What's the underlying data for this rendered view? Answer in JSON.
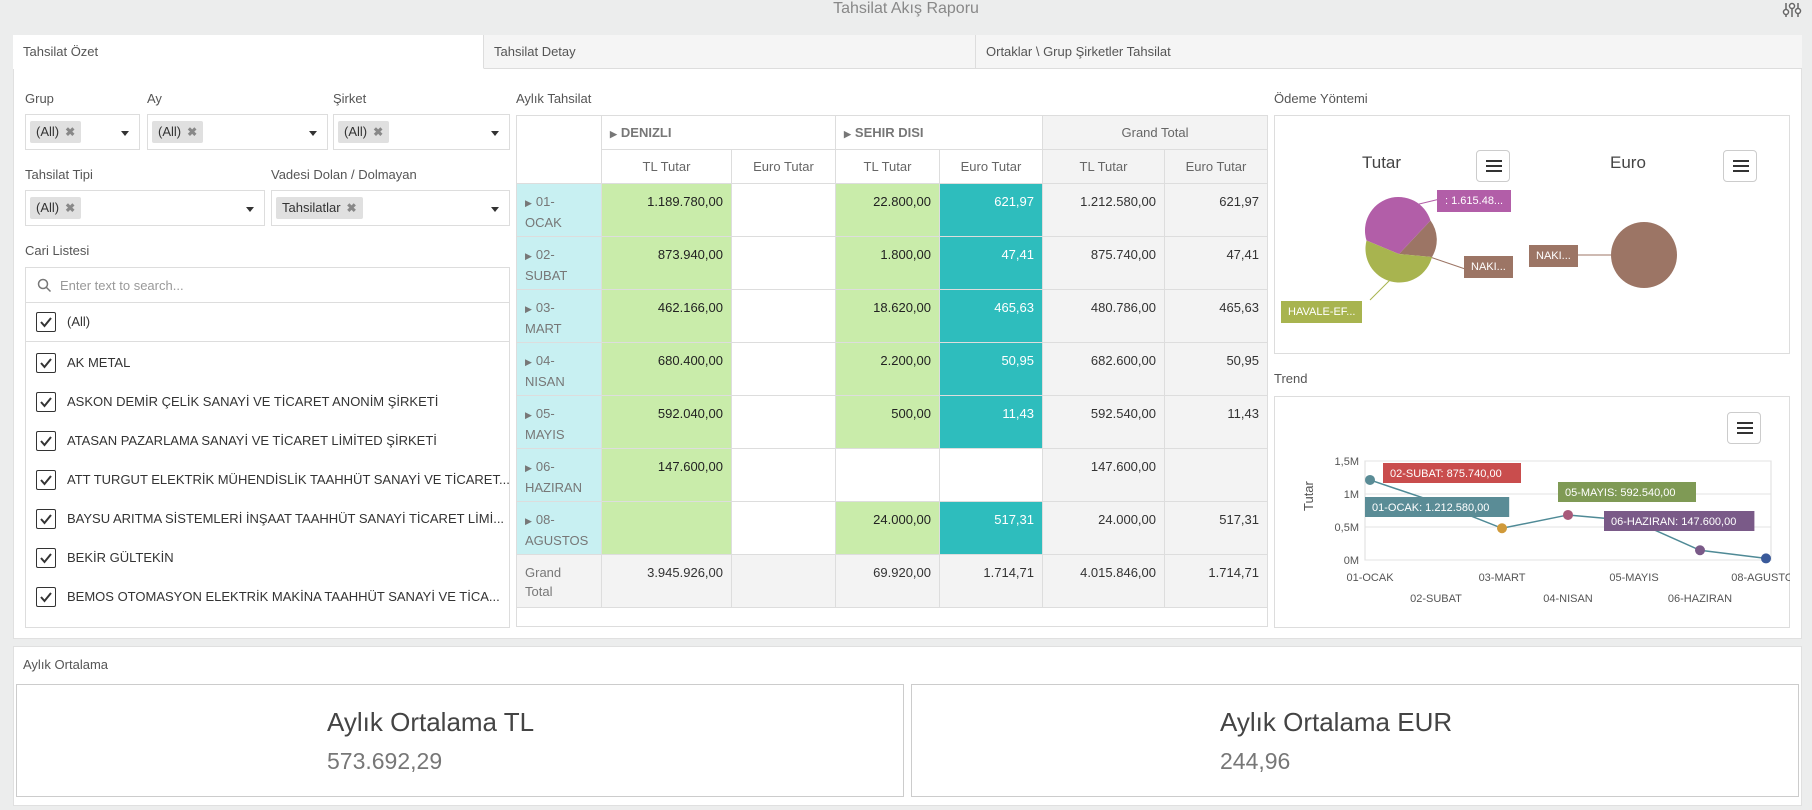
{
  "header": {
    "title": "Tahsilat Akış Raporu"
  },
  "tabs": [
    "Tahsilat Özet",
    "Tahsilat Detay",
    "Ortaklar \\ Grup Şirketler Tahsilat"
  ],
  "filters": {
    "grup": {
      "label": "Grup",
      "value": "(All)"
    },
    "ay": {
      "label": "Ay",
      "value": "(All)"
    },
    "sirket": {
      "label": "Şirket",
      "value": "(All)"
    },
    "tahsilat_tipi": {
      "label": "Tahsilat Tipi",
      "value": "(All)"
    },
    "vadesi": {
      "label": "Vadesi Dolan / Dolmayan",
      "value": "Tahsilatlar"
    }
  },
  "cari": {
    "label": "Cari Listesi",
    "search_placeholder": "Enter text to search...",
    "all_label": "(All)",
    "items": [
      "AK METAL",
      "ASKON DEMİR ÇELİK SANAYİ VE TİCARET ANONİM ŞİRKETİ",
      "ATASAN PAZARLAMA SANAYİ VE TİCARET LİMİTED ŞİRKETİ",
      "ATT TURGUT ELEKTRİK MÜHENDİSLİK TAAHHÜT SANAYİ VE TİCARET...",
      "BAYSU ARITMA SİSTEMLERİ İNŞAAT TAAHHÜT SANAYİ TİCARET LİMİ...",
      "BEKİR GÜLTEKİN",
      "BEMOS OTOMASYON ELEKTRİK MAKİNA TAAHHÜT SANAYİ VE TİCA..."
    ]
  },
  "pivot": {
    "title": "Aylık Tahsilat",
    "groups": [
      "DENIZLI",
      "SEHIR DISI",
      "Grand Total"
    ],
    "measures": [
      "TL Tutar",
      "Euro Tutar"
    ],
    "rows": [
      {
        "label": "01-\nOCAK",
        "cells": [
          "1.189.780,00",
          "",
          "22.800,00",
          "621,97",
          "1.212.580,00",
          "621,97"
        ]
      },
      {
        "label": "02-\nSUBAT",
        "cells": [
          "873.940,00",
          "",
          "1.800,00",
          "47,41",
          "875.740,00",
          "47,41"
        ]
      },
      {
        "label": "03-\nMART",
        "cells": [
          "462.166,00",
          "",
          "18.620,00",
          "465,63",
          "480.786,00",
          "465,63"
        ]
      },
      {
        "label": "04-\nNISAN",
        "cells": [
          "680.400,00",
          "",
          "2.200,00",
          "50,95",
          "682.600,00",
          "50,95"
        ]
      },
      {
        "label": "05-\nMAYIS",
        "cells": [
          "592.040,00",
          "",
          "500,00",
          "11,43",
          "592.540,00",
          "11,43"
        ]
      },
      {
        "label": "06-\nHAZIRAN",
        "cells": [
          "147.600,00",
          "",
          "",
          "",
          "147.600,00",
          ""
        ]
      },
      {
        "label": "08-\nAGUSTOS",
        "cells": [
          "",
          "",
          "24.000,00",
          "517,31",
          "24.000,00",
          "517,31"
        ]
      }
    ],
    "grand": {
      "label": "Grand\nTotal",
      "cells": [
        "3.945.926,00",
        "",
        "69.920,00",
        "1.714,71",
        "4.015.846,00",
        "1.714,71"
      ]
    }
  },
  "odeme": {
    "title": "Ödeme Yöntemi",
    "tutar_label": "Tutar",
    "euro_label": "Euro",
    "tutar_labels": [
      ": 1.615.48...",
      "NAKI...",
      "HAVALE-EF..."
    ],
    "euro_labels": [
      "NAKI..."
    ],
    "colors": {
      "pink": "#b25ea8",
      "olive": "#a8b44f",
      "brown": "#9c7565"
    }
  },
  "trend": {
    "title": "Trend",
    "ylabel": "Tutar",
    "ytick_labels": [
      "1,5M",
      "1M",
      "0,5M",
      "0M"
    ],
    "xtick_labels": [
      "01-OCAK",
      "02-SUBAT",
      "03-MART",
      "04-NISAN",
      "05-MAYIS",
      "06-HAZIRAN",
      "08-AGUSTOS"
    ],
    "xtick_display": [
      "01-OCAK",
      "02-SUBAT",
      "03-MART",
      "04-NISAN",
      "05-MAYIS",
      "06-HAZIRAN",
      "08-AGUSTOS"
    ],
    "tooltips": [
      "02-SUBAT: 875.740,00",
      "01-OCAK: 1.212.580,00",
      "05-MAYIS: 592.540,00",
      "06-HAZIRAN: 147.600,00"
    ]
  },
  "chart_data": {
    "type": "line",
    "title": "Trend",
    "xlabel": "",
    "ylabel": "Tutar",
    "categories": [
      "01-OCAK",
      "02-SUBAT",
      "03-MART",
      "04-NISAN",
      "05-MAYIS",
      "06-HAZIRAN",
      "08-AGUSTOS"
    ],
    "values": [
      1212580,
      875740,
      480786,
      682600,
      592540,
      147600,
      24000
    ],
    "ylim": [
      0,
      1500000
    ],
    "grid": true
  },
  "ortalama": {
    "title": "Aylık Ortalama",
    "tl": {
      "label": "Aylık Ortalama TL",
      "value": "573.692,29"
    },
    "eur": {
      "label": "Aylık Ortalama EUR",
      "value": "244,96"
    }
  }
}
